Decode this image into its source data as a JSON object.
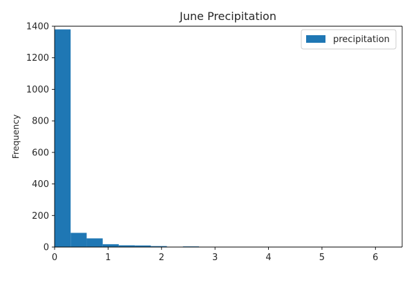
{
  "chart_data": {
    "type": "bar",
    "subtype": "histogram",
    "title": "June Precipitation",
    "xlabel": "",
    "ylabel": "Frequency",
    "xlim": [
      0,
      6.5
    ],
    "ylim": [
      0,
      1400
    ],
    "x_ticks": [
      0,
      1,
      2,
      3,
      4,
      5,
      6
    ],
    "y_ticks": [
      0,
      200,
      400,
      600,
      800,
      1000,
      1200,
      1400
    ],
    "grid": false,
    "legend_position": "top-right",
    "bin_width": 0.3,
    "series": [
      {
        "name": "precipitation",
        "color": "#1f77b4",
        "bins": [
          {
            "x0": 0.0,
            "x1": 0.3,
            "count": 1380
          },
          {
            "x0": 0.3,
            "x1": 0.6,
            "count": 90
          },
          {
            "x0": 0.6,
            "x1": 0.9,
            "count": 55
          },
          {
            "x0": 0.9,
            "x1": 1.2,
            "count": 18
          },
          {
            "x0": 1.2,
            "x1": 1.5,
            "count": 11
          },
          {
            "x0": 1.5,
            "x1": 1.8,
            "count": 10
          },
          {
            "x0": 1.8,
            "x1": 2.1,
            "count": 6
          },
          {
            "x0": 2.1,
            "x1": 2.4,
            "count": 1
          },
          {
            "x0": 2.4,
            "x1": 2.7,
            "count": 4
          },
          {
            "x0": 2.7,
            "x1": 3.0,
            "count": 1
          }
        ]
      }
    ]
  }
}
